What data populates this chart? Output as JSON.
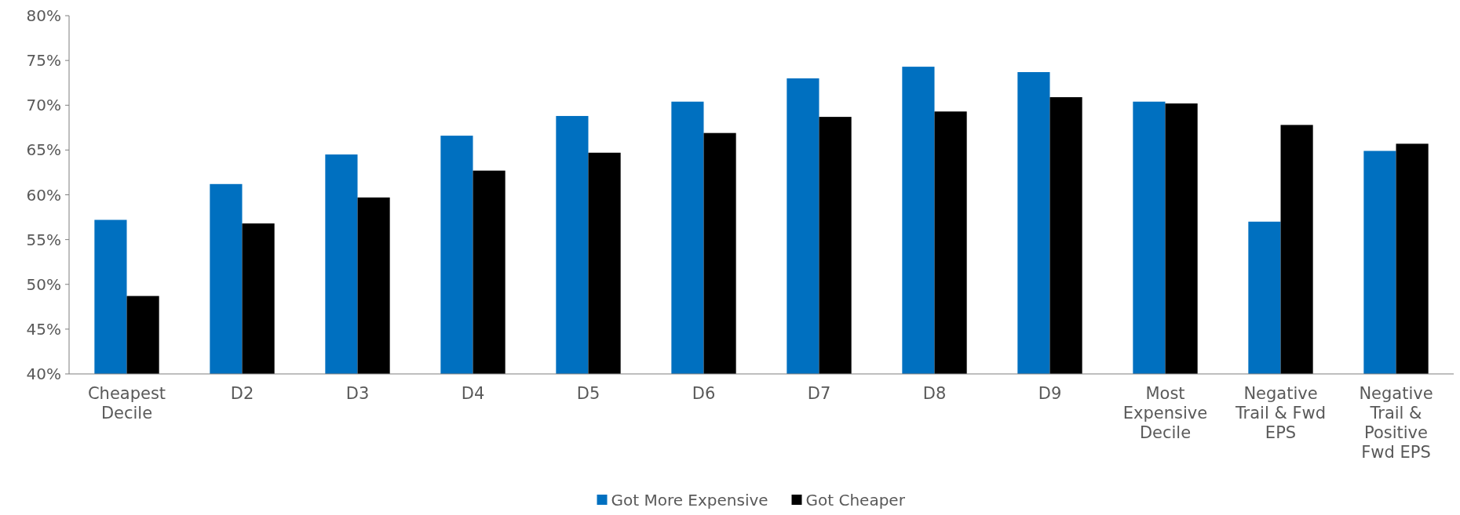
{
  "chart_data": {
    "type": "bar",
    "categories": [
      "Cheapest Decile",
      "D2",
      "D3",
      "D4",
      "D5",
      "D6",
      "D7",
      "D8",
      "D9",
      "Most Expensive Decile",
      "Negative Trail & Fwd EPS",
      "Negative Trail & Positive Fwd EPS"
    ],
    "series": [
      {
        "name": "Got More Expensive",
        "color": "#0070c0",
        "values": [
          57.2,
          61.2,
          64.5,
          66.6,
          68.8,
          70.4,
          73.0,
          74.3,
          73.7,
          70.4,
          57.0,
          64.9
        ]
      },
      {
        "name": "Got Cheaper",
        "color": "#000000",
        "values": [
          48.7,
          56.8,
          59.7,
          62.7,
          64.7,
          66.9,
          68.7,
          69.3,
          70.9,
          70.2,
          67.8,
          65.7
        ]
      }
    ],
    "ylim": [
      40,
      80
    ],
    "yticks": [
      {
        "value": 40,
        "label": "40%"
      },
      {
        "value": 45,
        "label": "45%"
      },
      {
        "value": 50,
        "label": "50%"
      },
      {
        "value": 55,
        "label": "55%"
      },
      {
        "value": 60,
        "label": "60%"
      },
      {
        "value": 65,
        "label": "65%"
      },
      {
        "value": 70,
        "label": "70%"
      },
      {
        "value": 75,
        "label": "75%"
      },
      {
        "value": 80,
        "label": "80%"
      }
    ],
    "grid": false,
    "legend": "bottom"
  }
}
